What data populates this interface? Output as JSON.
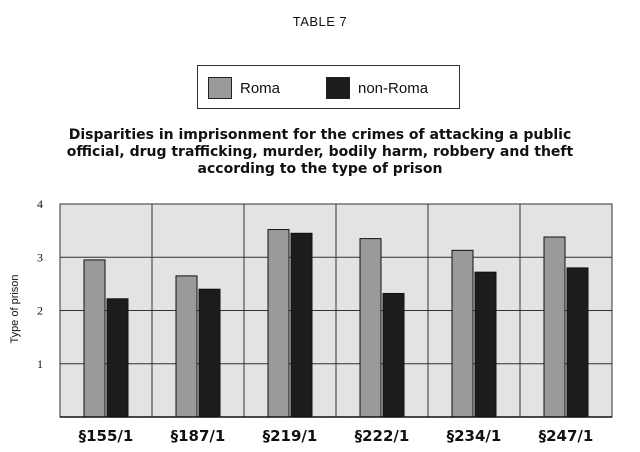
{
  "table_label": "TABLE 7",
  "chart_data": {
    "type": "bar",
    "title": "Disparities in imprisonment for the crimes of attacking a public official, drug trafficking, murder, bodily harm, robbery and theft according to the type of prison",
    "title_lines": [
      "Disparities in imprisonment for the crimes of attacking a public",
      "official, drug trafficking, murder, bodily harm, robbery and theft",
      "according to the type of prison"
    ],
    "xlabel": "",
    "ylabel": "Type of prison",
    "ylim": [
      0,
      4
    ],
    "yticks": [
      "1",
      "2",
      "3",
      "4"
    ],
    "grid": true,
    "legend_position": "top-center",
    "categories": [
      "§155/1",
      "§187/1",
      "§219/1",
      "§222/1",
      "§234/1",
      "§247/1"
    ],
    "series": [
      {
        "name": "Roma",
        "color": "#9a9a9a",
        "values": [
          2.95,
          2.65,
          3.52,
          3.35,
          3.13,
          3.38
        ]
      },
      {
        "name": "non-Roma",
        "color": "#1c1c1c",
        "values": [
          2.22,
          2.4,
          3.45,
          2.32,
          2.72,
          2.8
        ]
      }
    ]
  }
}
